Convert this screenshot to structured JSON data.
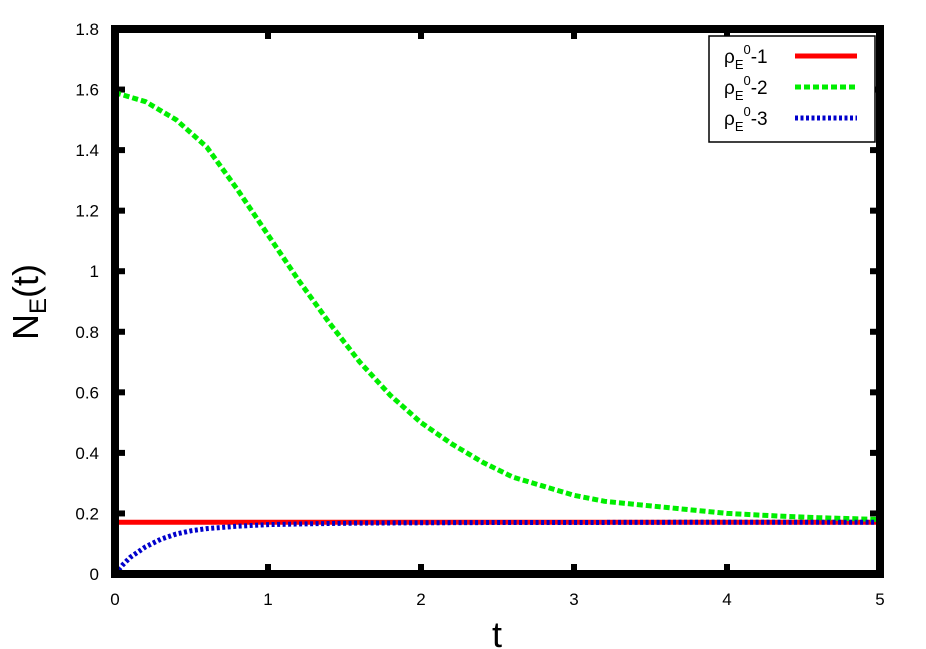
{
  "chart_data": {
    "type": "line",
    "xlabel": {
      "main": "t",
      "sub": ""
    },
    "ylabel": {
      "main": "N",
      "sub": "E",
      "suffix": "(t)"
    },
    "xlim": [
      0,
      5
    ],
    "ylim": [
      0,
      1.8
    ],
    "xticks": [
      "0",
      "1",
      "2",
      "3",
      "4",
      "5"
    ],
    "yticks": [
      "0",
      "0.2",
      "0.4",
      "0.6",
      "0.8",
      "1",
      "1.2",
      "1.4",
      "1.6",
      "1.8"
    ],
    "grid": false,
    "legend_position": "top-right",
    "series": [
      {
        "name": "ρE0-1",
        "label": {
          "base": "ρ",
          "sub": "E",
          "sup": "0",
          "suffix": "-1"
        },
        "color": "#ff0000",
        "style": "solid",
        "x": [
          0,
          1,
          2,
          3,
          4,
          5
        ],
        "y": [
          0.171,
          0.171,
          0.171,
          0.171,
          0.171,
          0.171
        ]
      },
      {
        "name": "ρE0-2",
        "label": {
          "base": "ρ",
          "sub": "E",
          "sup": "0",
          "suffix": "-2"
        },
        "color": "#00ee00",
        "style": "dashed",
        "x": [
          0,
          0.2,
          0.4,
          0.6,
          0.8,
          1.0,
          1.2,
          1.4,
          1.6,
          1.8,
          2.0,
          2.2,
          2.4,
          2.6,
          2.8,
          3.0,
          3.2,
          3.4,
          3.6,
          3.8,
          4.0,
          4.2,
          4.4,
          4.6,
          4.8,
          5.0
        ],
        "y": [
          1.59,
          1.56,
          1.5,
          1.41,
          1.27,
          1.12,
          0.97,
          0.83,
          0.7,
          0.59,
          0.5,
          0.43,
          0.37,
          0.32,
          0.29,
          0.26,
          0.24,
          0.23,
          0.22,
          0.21,
          0.2,
          0.195,
          0.19,
          0.186,
          0.183,
          0.18
        ]
      },
      {
        "name": "ρE0-3",
        "label": {
          "base": "ρ",
          "sub": "E",
          "sup": "0",
          "suffix": "-3"
        },
        "color": "#0000cc",
        "style": "dotted",
        "x": [
          0,
          0.05,
          0.1,
          0.2,
          0.3,
          0.4,
          0.5,
          0.6,
          0.8,
          1.0,
          1.3,
          1.6,
          2.0,
          2.5,
          3.0,
          4.0,
          5.0
        ],
        "y": [
          0.0,
          0.03,
          0.055,
          0.09,
          0.115,
          0.132,
          0.143,
          0.15,
          0.158,
          0.163,
          0.166,
          0.168,
          0.169,
          0.17,
          0.17,
          0.171,
          0.171
        ]
      }
    ]
  }
}
